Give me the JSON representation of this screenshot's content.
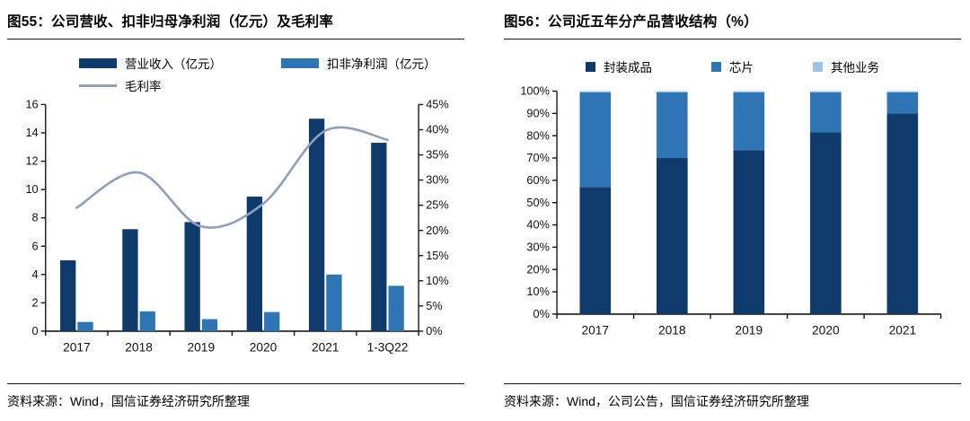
{
  "chart_data": [
    {
      "type": "bar",
      "subtype": "grouped-bar-with-line",
      "title": "图55：公司营收、扣非归母净利润（亿元）及毛利率",
      "categories": [
        "2017",
        "2018",
        "2019",
        "2020",
        "2021",
        "1-3Q22"
      ],
      "series": [
        {
          "name": "营业收入（亿元）",
          "kind": "bar",
          "axis": "left",
          "color": "#0e3a6c",
          "values": [
            5.0,
            7.2,
            7.7,
            9.5,
            15.0,
            13.3
          ]
        },
        {
          "name": "扣非净利润（亿元）",
          "kind": "bar",
          "axis": "left",
          "color": "#2e75b6",
          "values": [
            0.65,
            1.4,
            0.85,
            1.35,
            4.0,
            3.2
          ]
        },
        {
          "name": "毛利率",
          "kind": "line",
          "axis": "right",
          "color": "#8fa0bd",
          "values": [
            24.5,
            31.5,
            20.8,
            25.3,
            39.8,
            38.0
          ]
        }
      ],
      "left_axis": {
        "min": 0,
        "max": 16,
        "step": 2,
        "tick_labels": [
          "0",
          "2",
          "4",
          "6",
          "8",
          "10",
          "12",
          "14",
          "16"
        ]
      },
      "right_axis": {
        "min": 0,
        "max": 45,
        "step": 5,
        "tick_labels": [
          "0%",
          "5%",
          "10%",
          "15%",
          "20%",
          "25%",
          "30%",
          "35%",
          "40%",
          "45%"
        ]
      },
      "grid": false,
      "legend_position": "top",
      "source": "资料来源：Wind，国信证券经济研究所整理"
    },
    {
      "type": "bar",
      "subtype": "stacked-percent",
      "title": "图56：公司近五年分产品营收结构（%）",
      "categories": [
        "2017",
        "2018",
        "2019",
        "2020",
        "2021"
      ],
      "series": [
        {
          "name": "封装成品",
          "color": "#0e3a6c",
          "values": [
            57,
            70,
            73.5,
            81.5,
            90
          ]
        },
        {
          "name": "芯片",
          "color": "#2e75b6",
          "values": [
            42.5,
            29.5,
            26,
            18,
            9.5
          ]
        },
        {
          "name": "其他业务",
          "color": "#9dc3e6",
          "values": [
            0.5,
            0.5,
            0.5,
            0.5,
            0.5
          ]
        }
      ],
      "y_axis": {
        "min": 0,
        "max": 100,
        "step": 10,
        "tick_labels": [
          "0%",
          "10%",
          "20%",
          "30%",
          "40%",
          "50%",
          "60%",
          "70%",
          "80%",
          "90%",
          "100%"
        ]
      },
      "grid": false,
      "legend_position": "top",
      "source": "资料来源：Wind，公司公告，国信证券经济研究所整理"
    }
  ]
}
